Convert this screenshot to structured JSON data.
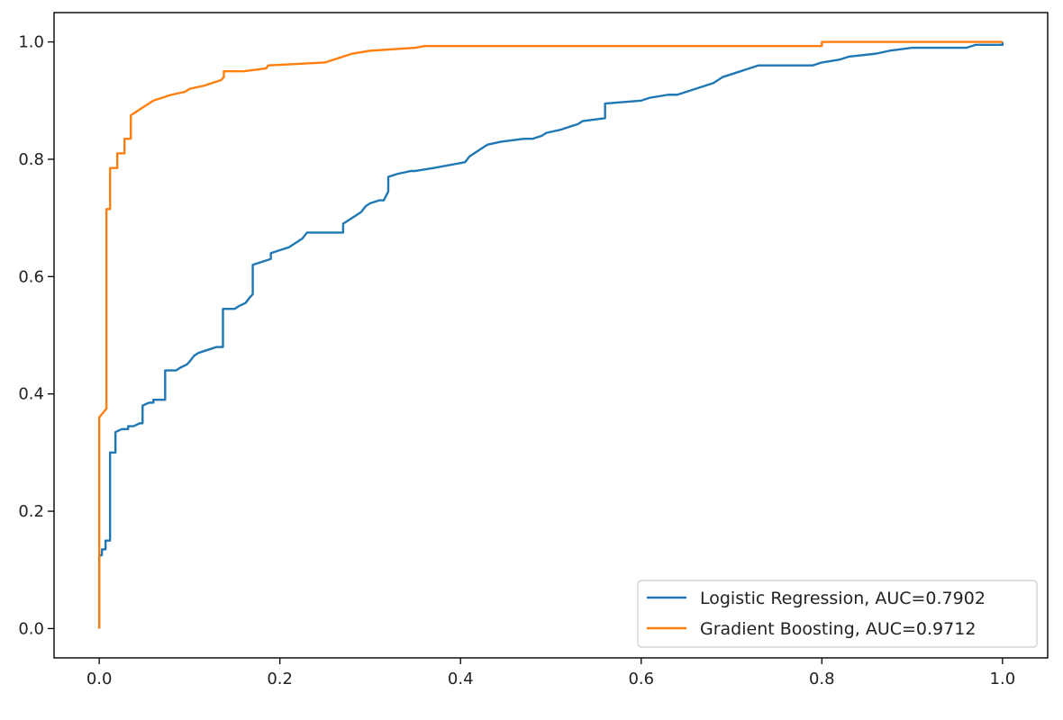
{
  "chart_data": {
    "type": "line",
    "title": "",
    "xlabel": "",
    "ylabel": "",
    "xlim": [
      -0.05,
      1.05
    ],
    "ylim": [
      -0.05,
      1.05
    ],
    "x_ticks": [
      0.0,
      0.2,
      0.4,
      0.6,
      0.8,
      1.0
    ],
    "x_tick_labels": [
      "0.0",
      "0.2",
      "0.4",
      "0.6",
      "0.8",
      "1.0"
    ],
    "y_ticks": [
      0.0,
      0.2,
      0.4,
      0.6,
      0.8,
      1.0
    ],
    "y_tick_labels": [
      "0.0",
      "0.2",
      "0.4",
      "0.6",
      "0.8",
      "1.0"
    ],
    "grid": false,
    "legend_position": "lower-right",
    "series": [
      {
        "name": "Logistic Regression, AUC=0.7902",
        "color": "#1f77b4",
        "x": [
          0.0,
          0.0,
          0.003,
          0.003,
          0.007,
          0.007,
          0.012,
          0.012,
          0.018,
          0.018,
          0.025,
          0.032,
          0.032,
          0.038,
          0.045,
          0.048,
          0.048,
          0.055,
          0.06,
          0.06,
          0.073,
          0.073,
          0.085,
          0.09,
          0.097,
          0.1,
          0.105,
          0.11,
          0.12,
          0.13,
          0.137,
          0.137,
          0.15,
          0.155,
          0.162,
          0.167,
          0.17,
          0.17,
          0.18,
          0.19,
          0.19,
          0.2,
          0.21,
          0.215,
          0.22,
          0.225,
          0.23,
          0.27,
          0.27,
          0.28,
          0.29,
          0.295,
          0.3,
          0.31,
          0.315,
          0.32,
          0.32,
          0.33,
          0.345,
          0.35,
          0.37,
          0.405,
          0.41,
          0.42,
          0.43,
          0.445,
          0.47,
          0.48,
          0.49,
          0.495,
          0.51,
          0.53,
          0.535,
          0.56,
          0.56,
          0.6,
          0.61,
          0.63,
          0.64,
          0.66,
          0.67,
          0.68,
          0.69,
          0.7,
          0.71,
          0.72,
          0.73,
          0.79,
          0.8,
          0.82,
          0.83,
          0.86,
          0.875,
          0.9,
          0.96,
          0.97,
          1.0,
          1.0
        ],
        "y": [
          0.0,
          0.125,
          0.125,
          0.135,
          0.135,
          0.15,
          0.15,
          0.3,
          0.3,
          0.335,
          0.34,
          0.34,
          0.345,
          0.345,
          0.35,
          0.35,
          0.38,
          0.385,
          0.385,
          0.39,
          0.39,
          0.44,
          0.44,
          0.445,
          0.45,
          0.455,
          0.465,
          0.47,
          0.475,
          0.48,
          0.48,
          0.545,
          0.545,
          0.55,
          0.555,
          0.565,
          0.57,
          0.62,
          0.625,
          0.63,
          0.64,
          0.645,
          0.65,
          0.655,
          0.66,
          0.665,
          0.675,
          0.675,
          0.69,
          0.7,
          0.71,
          0.72,
          0.725,
          0.73,
          0.73,
          0.745,
          0.77,
          0.775,
          0.78,
          0.78,
          0.785,
          0.795,
          0.805,
          0.815,
          0.825,
          0.83,
          0.835,
          0.835,
          0.84,
          0.845,
          0.85,
          0.86,
          0.865,
          0.87,
          0.895,
          0.9,
          0.905,
          0.91,
          0.91,
          0.92,
          0.925,
          0.93,
          0.94,
          0.945,
          0.95,
          0.955,
          0.96,
          0.96,
          0.965,
          0.97,
          0.975,
          0.98,
          0.985,
          0.99,
          0.99,
          0.995,
          0.995,
          1.0
        ]
      },
      {
        "name": "Gradient Boosting, AUC=0.9712",
        "color": "#ff7f0e",
        "x": [
          0.0,
          0.0,
          0.008,
          0.008,
          0.012,
          0.012,
          0.02,
          0.02,
          0.028,
          0.028,
          0.035,
          0.035,
          0.04,
          0.045,
          0.05,
          0.055,
          0.06,
          0.07,
          0.08,
          0.095,
          0.1,
          0.115,
          0.125,
          0.135,
          0.138,
          0.138,
          0.16,
          0.185,
          0.187,
          0.25,
          0.26,
          0.27,
          0.28,
          0.3,
          0.35,
          0.36,
          0.6,
          0.8,
          0.8,
          0.85,
          1.0
        ],
        "y": [
          0.0,
          0.36,
          0.375,
          0.715,
          0.715,
          0.785,
          0.785,
          0.81,
          0.81,
          0.835,
          0.835,
          0.875,
          0.88,
          0.885,
          0.89,
          0.895,
          0.9,
          0.905,
          0.91,
          0.915,
          0.92,
          0.925,
          0.93,
          0.935,
          0.94,
          0.95,
          0.95,
          0.955,
          0.96,
          0.965,
          0.97,
          0.975,
          0.98,
          0.985,
          0.99,
          0.993,
          0.993,
          0.993,
          1.0,
          1.0,
          1.0
        ]
      }
    ]
  }
}
